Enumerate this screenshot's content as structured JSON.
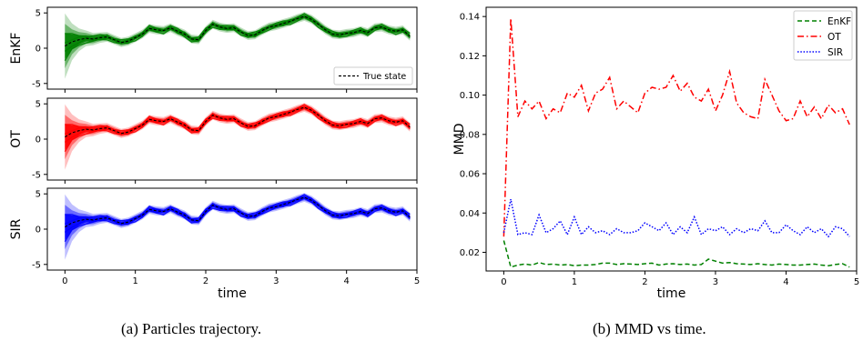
{
  "chart_data": [
    {
      "type": "line",
      "caption": "(a) Particles trajectory.",
      "xlabel": "time",
      "xlim": [
        -0.25,
        5.0
      ],
      "xticks": [
        "0",
        "1",
        "2",
        "3",
        "4",
        "5"
      ],
      "subplots": [
        {
          "ylabel": "EnKF",
          "color": "#008000",
          "ylim": [
            -5.8,
            5.8
          ],
          "yticks": [
            "5",
            "0",
            "-5"
          ],
          "legend": {
            "label": "True state",
            "position": "lower-right"
          }
        },
        {
          "ylabel": "OT",
          "color": "#ff0000",
          "ylim": [
            -5.8,
            5.8
          ],
          "yticks": [
            "5",
            "0",
            "-5"
          ]
        },
        {
          "ylabel": "SIR",
          "color": "#0000ff",
          "ylim": [
            -5.8,
            5.8
          ],
          "yticks": [
            "5",
            "0",
            "-5"
          ]
        }
      ],
      "true_state": {
        "x": [
          0,
          0.1,
          0.2,
          0.3,
          0.4,
          0.5,
          0.6,
          0.7,
          0.8,
          0.9,
          1.0,
          1.1,
          1.2,
          1.3,
          1.4,
          1.5,
          1.6,
          1.7,
          1.8,
          1.9,
          2.0,
          2.1,
          2.2,
          2.3,
          2.4,
          2.5,
          2.6,
          2.7,
          2.8,
          2.9,
          3.0,
          3.1,
          3.2,
          3.3,
          3.4,
          3.5,
          3.6,
          3.7,
          3.8,
          3.9,
          4.0,
          4.1,
          4.2,
          4.3,
          4.4,
          4.5,
          4.6,
          4.7,
          4.8,
          4.9
        ],
        "y": [
          0.3,
          0.9,
          1.2,
          1.4,
          1.3,
          1.5,
          1.6,
          1.2,
          0.8,
          1.0,
          1.5,
          2.0,
          2.8,
          2.6,
          2.5,
          2.9,
          2.4,
          2.0,
          1.3,
          1.2,
          2.5,
          3.4,
          3.0,
          2.8,
          2.9,
          2.3,
          1.8,
          1.9,
          2.5,
          3.0,
          3.2,
          3.5,
          3.8,
          4.2,
          4.5,
          4.1,
          3.4,
          2.6,
          2.0,
          1.9,
          2.1,
          2.2,
          2.5,
          2.2,
          2.9,
          3.0,
          2.6,
          2.4,
          2.6,
          1.7
        ]
      }
    },
    {
      "type": "line",
      "caption": "(b) MMD vs time.",
      "xlabel": "time",
      "ylabel": "MMD",
      "xlim": [
        -0.25,
        5.0
      ],
      "ylim": [
        0.0105,
        0.1447
      ],
      "xticks": [
        "0",
        "1",
        "2",
        "3",
        "4",
        "5"
      ],
      "yticks": [
        "0.02",
        "0.04",
        "0.06",
        "0.08",
        "0.10",
        "0.12",
        "0.14"
      ],
      "legend_position": "top-right",
      "x": [
        0,
        0.1,
        0.2,
        0.3,
        0.4,
        0.5,
        0.6,
        0.7,
        0.8,
        0.9,
        1.0,
        1.1,
        1.2,
        1.3,
        1.4,
        1.5,
        1.6,
        1.7,
        1.8,
        1.9,
        2.0,
        2.1,
        2.2,
        2.3,
        2.4,
        2.5,
        2.6,
        2.7,
        2.8,
        2.9,
        3.0,
        3.1,
        3.2,
        3.3,
        3.4,
        3.5,
        3.6,
        3.7,
        3.8,
        3.9,
        4.0,
        4.1,
        4.2,
        4.3,
        4.4,
        4.5,
        4.6,
        4.7,
        4.8,
        4.9
      ],
      "series": [
        {
          "name": "EnKF",
          "color": "#008000",
          "dash": "dashed",
          "values": [
            0.026,
            0.0125,
            0.0135,
            0.014,
            0.0135,
            0.0148,
            0.0138,
            0.014,
            0.0135,
            0.0138,
            0.0132,
            0.0135,
            0.0135,
            0.0138,
            0.0145,
            0.0145,
            0.0138,
            0.0142,
            0.014,
            0.0138,
            0.0142,
            0.0145,
            0.0135,
            0.014,
            0.0142,
            0.0138,
            0.014,
            0.0135,
            0.0138,
            0.0165,
            0.0155,
            0.0145,
            0.0148,
            0.0142,
            0.014,
            0.0138,
            0.0142,
            0.0138,
            0.0135,
            0.014,
            0.0138,
            0.0135,
            0.0135,
            0.0138,
            0.014,
            0.0135,
            0.0132,
            0.0138,
            0.0142,
            0.0125
          ]
        },
        {
          "name": "OT",
          "color": "#ff0000",
          "dash": "dashdot",
          "values": [
            0.028,
            0.139,
            0.089,
            0.097,
            0.093,
            0.097,
            0.088,
            0.093,
            0.091,
            0.101,
            0.099,
            0.105,
            0.092,
            0.101,
            0.103,
            0.109,
            0.093,
            0.097,
            0.094,
            0.091,
            0.101,
            0.104,
            0.103,
            0.104,
            0.11,
            0.102,
            0.106,
            0.099,
            0.097,
            0.103,
            0.092,
            0.1,
            0.112,
            0.096,
            0.091,
            0.089,
            0.088,
            0.108,
            0.1,
            0.092,
            0.087,
            0.088,
            0.097,
            0.089,
            0.094,
            0.088,
            0.095,
            0.091,
            0.093,
            0.085
          ]
        },
        {
          "name": "SIR",
          "color": "#0000ff",
          "dash": "dotted",
          "values": [
            0.03,
            0.047,
            0.029,
            0.03,
            0.029,
            0.039,
            0.03,
            0.032,
            0.036,
            0.029,
            0.038,
            0.029,
            0.033,
            0.03,
            0.031,
            0.029,
            0.032,
            0.03,
            0.03,
            0.031,
            0.035,
            0.033,
            0.031,
            0.035,
            0.029,
            0.033,
            0.03,
            0.038,
            0.029,
            0.032,
            0.031,
            0.033,
            0.029,
            0.032,
            0.03,
            0.032,
            0.031,
            0.036,
            0.03,
            0.03,
            0.034,
            0.031,
            0.029,
            0.033,
            0.03,
            0.032,
            0.028,
            0.033,
            0.032,
            0.028
          ]
        }
      ]
    }
  ]
}
